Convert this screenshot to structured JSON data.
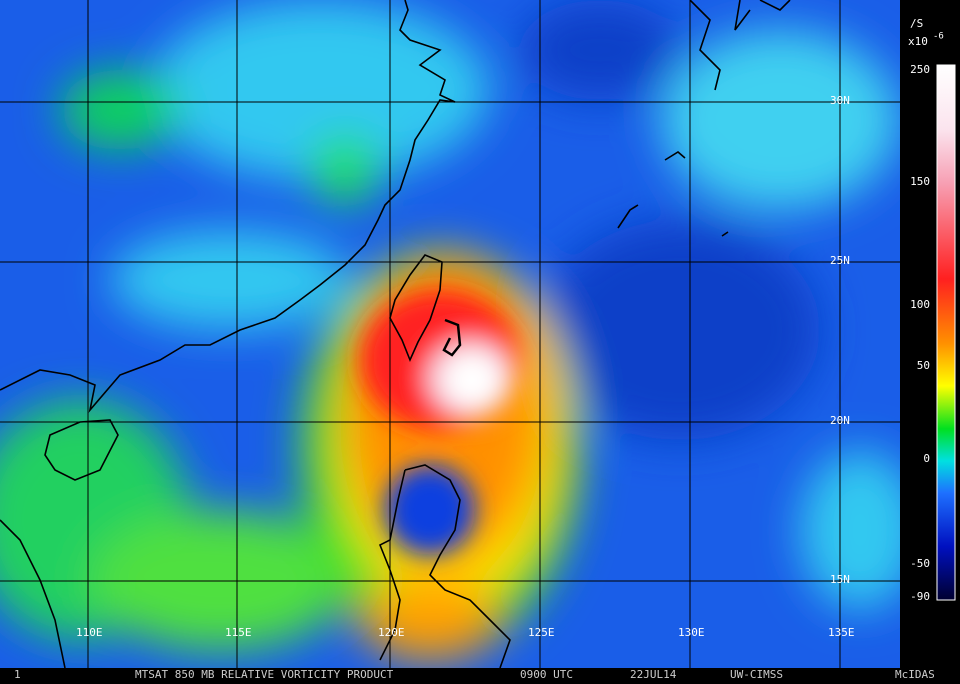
{
  "map": {
    "lat_labels": [
      "30N",
      "25N",
      "20N",
      "15N"
    ],
    "lon_labels": [
      "110E",
      "115E",
      "120E",
      "125E",
      "130E",
      "135E"
    ],
    "legend": {
      "unit": "/S",
      "multiplier": "x10",
      "exponent": "-6",
      "ticks": [
        250,
        150,
        100,
        50,
        0,
        -50,
        -90
      ]
    }
  },
  "footer": {
    "frame": "1",
    "product": "MTSAT 850 MB RELATIVE VORTICITY PRODUCT",
    "time": "0900 UTC",
    "date": "22JUL14",
    "source": "UW-CIMSS",
    "software": "McIDAS"
  }
}
